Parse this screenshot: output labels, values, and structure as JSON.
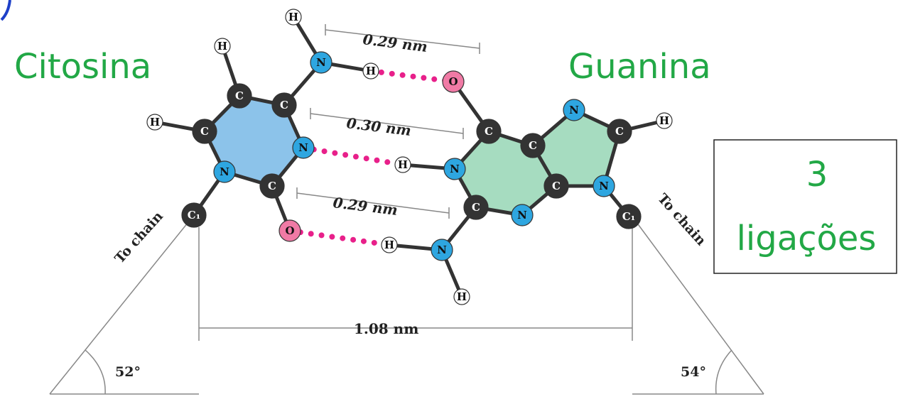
{
  "labels": {
    "left": "Citosina",
    "right": "Guanina"
  },
  "box": {
    "line1": "3",
    "line2": "ligações"
  },
  "distances": [
    "0.29 nm",
    "0.30 nm",
    "0.29 nm",
    "1.08 nm"
  ],
  "angles": [
    "52°",
    "54°"
  ],
  "chains": [
    "To chain",
    "To chain"
  ],
  "atoms": [
    "C",
    "C",
    "N",
    "C",
    "N",
    "C",
    "H",
    "H",
    "N",
    "H",
    "H",
    "C₁",
    "O",
    "O",
    "C",
    "C",
    "C",
    "N",
    "C",
    "N",
    "N",
    "C",
    "N",
    "H",
    "C₁",
    "H",
    "N",
    "H",
    "H"
  ]
}
